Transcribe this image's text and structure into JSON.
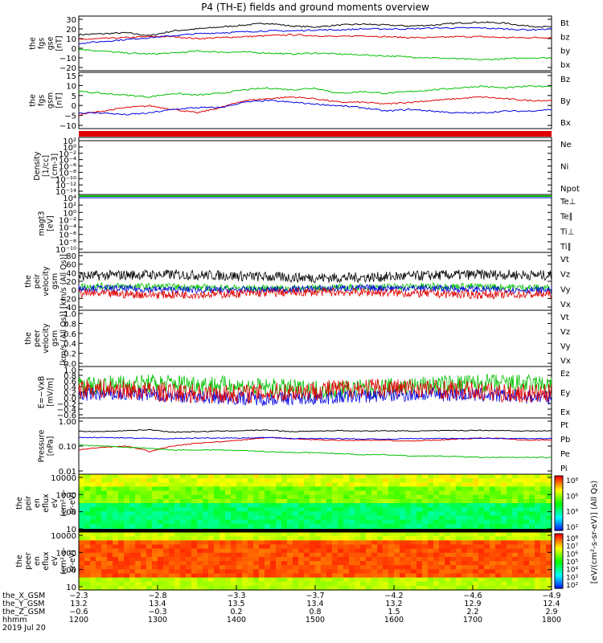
{
  "title": "P4 (TH-E) fields and ground moments overview",
  "colors": {
    "black": "#000000",
    "red": "#e00000",
    "green": "#00c000",
    "blue": "#0000e0"
  },
  "chart_data": [
    {
      "id": "fgs-gse",
      "type": "line",
      "ylabel": [
        "the",
        "fgs",
        "gse",
        "[nT]"
      ],
      "yticks": [
        "30",
        "20",
        "10",
        "0",
        "−10",
        "−20"
      ],
      "ylim": [
        -20,
        30
      ],
      "legend": [
        {
          "name": "Bt",
          "color": "black"
        },
        {
          "name": "bz",
          "color": "red"
        },
        {
          "name": "by",
          "color": "green"
        },
        {
          "name": "bx",
          "color": "blue"
        }
      ],
      "series": [
        {
          "name": "Bt",
          "color": "black",
          "values": [
            14,
            15,
            16,
            13,
            18,
            20,
            22,
            24,
            26,
            23,
            22,
            24,
            25,
            24,
            23,
            24,
            26,
            27,
            26,
            23,
            22
          ]
        },
        {
          "name": "bz",
          "color": "red",
          "values": [
            9,
            10,
            11,
            12,
            12,
            10,
            11,
            12,
            13,
            14,
            13,
            12,
            13,
            12,
            11,
            11,
            12,
            12,
            11,
            11,
            11
          ]
        },
        {
          "name": "by",
          "color": "green",
          "values": [
            -1,
            -3,
            -5,
            -6,
            -5,
            -3,
            -4,
            -4,
            -5,
            -6,
            -5,
            -6,
            -7,
            -8,
            -9,
            -10,
            -11,
            -12,
            -11,
            -10,
            -10
          ]
        },
        {
          "name": "bx",
          "color": "blue",
          "values": [
            5,
            7,
            9,
            11,
            13,
            15,
            16,
            17,
            18,
            18,
            19,
            19,
            20,
            20,
            20,
            21,
            21,
            21,
            20,
            19,
            20
          ]
        }
      ]
    },
    {
      "id": "fgs-gsm",
      "type": "line",
      "ylabel": [
        "the",
        "fgs",
        "gsm",
        "[nT]"
      ],
      "yticks": [
        "15",
        "10",
        "5",
        "0",
        "−5",
        "−10"
      ],
      "ylim": [
        -13,
        15
      ],
      "legend": [
        {
          "name": "Bz",
          "color": "red"
        },
        {
          "name": "By",
          "color": "green"
        },
        {
          "name": "Bx",
          "color": "blue"
        }
      ],
      "series": [
        {
          "name": "Bz",
          "color": "red",
          "values": [
            -7,
            -5,
            -3,
            -2,
            -4,
            -6,
            -3,
            1,
            2,
            3,
            2,
            0,
            0,
            -1,
            0,
            1,
            2,
            3,
            2,
            1,
            1
          ]
        },
        {
          "name": "By",
          "color": "green",
          "values": [
            6,
            5,
            4,
            3,
            5,
            4,
            5,
            7,
            8,
            7,
            8,
            5,
            6,
            5,
            6,
            7,
            8,
            9,
            8,
            9,
            9
          ]
        },
        {
          "name": "Bx",
          "color": "blue",
          "values": [
            -6,
            -6,
            -7,
            -6,
            -4,
            -3,
            -3,
            0,
            1,
            0,
            -1,
            -2,
            -3,
            -5,
            -4,
            -5,
            -6,
            -6,
            -5,
            -5,
            -4
          ]
        }
      ]
    },
    {
      "id": "density",
      "type": "line",
      "ylabel": [
        "Density",
        "[1/cc]",
        "[cm-3]"
      ],
      "yticks": [
        "10²",
        "10⁰",
        "10⁻²",
        "10⁻⁴",
        "10⁻⁶",
        "10⁻⁸",
        "10⁻¹⁰",
        "10⁻¹²",
        "10⁻¹⁴"
      ],
      "legend": [
        {
          "name": "Ne",
          "color": "red"
        },
        {
          "name": "Ni",
          "color": "black"
        },
        {
          "name": "Npot",
          "color": "blue"
        }
      ]
    },
    {
      "id": "temperature",
      "type": "line",
      "ylabel": [
        "magt3",
        "[eV]"
      ],
      "yticks": [
        "10⁴",
        "10²",
        "10⁰",
        "10⁻²",
        "10⁻⁴",
        "10⁻⁶",
        "10⁻⁸",
        "10⁻¹⁰"
      ],
      "legend": [
        {
          "name": "Te⊥",
          "color": "red"
        },
        {
          "name": "Te∥",
          "color": "black"
        },
        {
          "name": "Ti⊥",
          "color": "red"
        },
        {
          "name": "Ti∥",
          "color": "green"
        }
      ]
    },
    {
      "id": "peir-velocity",
      "type": "line",
      "ylabel": [
        "the",
        "peir",
        "velocity",
        "gsm",
        "[km/s (All Qs)]"
      ],
      "yticks": [
        "80",
        "60",
        "40",
        "20",
        "0",
        "−20",
        "−40"
      ],
      "ylim": [
        -40,
        80
      ],
      "legend": [
        {
          "name": "Vt",
          "color": "black"
        },
        {
          "name": "Vz",
          "color": "red"
        },
        {
          "name": "Vy",
          "color": "green"
        },
        {
          "name": "Vx",
          "color": "blue"
        }
      ]
    },
    {
      "id": "peer-velocity",
      "type": "line",
      "ylabel": [
        "the",
        "peer",
        "velocity",
        "gsm",
        "[km/s (All Qs)]"
      ],
      "yticks": [
        "1.0",
        "0.8",
        "0.6",
        "0.4",
        "0.2",
        "0.0"
      ],
      "ylim": [
        0,
        1
      ],
      "legend": [
        {
          "name": "Vt",
          "color": "black"
        },
        {
          "name": "Vz",
          "color": "red"
        },
        {
          "name": "Vy",
          "color": "green"
        },
        {
          "name": "Vx",
          "color": "blue"
        }
      ]
    },
    {
      "id": "efield",
      "type": "line",
      "ylabel": [
        "E=−VxB",
        "[mV/m]"
      ],
      "yticks": [
        "1.0",
        "0.8",
        "0.6",
        "0.4",
        "0.2",
        "0.0",
        "−0.2",
        "−0.4",
        "−0.6"
      ],
      "ylim": [
        -0.6,
        1.0
      ],
      "legend": [
        {
          "name": "Ez",
          "color": "red"
        },
        {
          "name": "Ey",
          "color": "green"
        },
        {
          "name": "Ex",
          "color": "blue"
        }
      ]
    },
    {
      "id": "pressure",
      "type": "line",
      "ylabel": [
        "Pressure",
        "[nPa]"
      ],
      "yticks": [
        "1.00",
        "0.10",
        "0.01"
      ],
      "legend": [
        {
          "name": "Pt",
          "color": "black"
        },
        {
          "name": "Pb",
          "color": "red"
        },
        {
          "name": "Pe",
          "color": "green"
        },
        {
          "name": "Pi",
          "color": "blue"
        }
      ],
      "series": [
        {
          "name": "Pt",
          "color": "black",
          "values": [
            0.4,
            0.38,
            0.42,
            0.45,
            0.36,
            0.38,
            0.4,
            0.42,
            0.44,
            0.38,
            0.4,
            0.42,
            0.4,
            0.41,
            0.4,
            0.41,
            0.42,
            0.43,
            0.42,
            0.4,
            0.41
          ]
        },
        {
          "name": "Pb",
          "color": "red",
          "values": [
            0.07,
            0.09,
            0.1,
            0.06,
            0.1,
            0.13,
            0.15,
            0.18,
            0.22,
            0.2,
            0.18,
            0.17,
            0.17,
            0.17,
            0.16,
            0.17,
            0.19,
            0.21,
            0.2,
            0.17,
            0.18
          ]
        },
        {
          "name": "Pe",
          "color": "green",
          "values": [
            0.11,
            0.1,
            0.09,
            0.08,
            0.07,
            0.07,
            0.07,
            0.065,
            0.06,
            0.055,
            0.055,
            0.05,
            0.045,
            0.045,
            0.04,
            0.04,
            0.038,
            0.035,
            0.035,
            0.035,
            0.035
          ]
        },
        {
          "name": "Pi",
          "color": "blue",
          "values": [
            0.22,
            0.22,
            0.21,
            0.2,
            0.2,
            0.21,
            0.21,
            0.21,
            0.22,
            0.2,
            0.2,
            0.2,
            0.19,
            0.19,
            0.2,
            0.2,
            0.2,
            0.21,
            0.2,
            0.2,
            0.2
          ]
        }
      ]
    },
    {
      "id": "peir-spectrogram",
      "type": "heatmap",
      "ylabel": [
        "the",
        "peir",
        "en",
        "eflux",
        "eV",
        "(cm²-s-",
        "sr-eV)"
      ],
      "yticks": [
        "10000",
        "1000",
        "100",
        "10"
      ]
    },
    {
      "id": "peer-spectrogram",
      "type": "heatmap",
      "ylabel": [
        "the",
        "peer",
        "en",
        "eflux",
        "eV",
        "(cm²-s-",
        "sr-eV)"
      ],
      "yticks": [
        "10000",
        "1000",
        "100",
        "10"
      ]
    }
  ],
  "colorbar": {
    "label": "[eV/(cm²-s-sr-eV)] (All Qs)",
    "ticks": [
      "10⁸",
      "10⁶",
      "10⁴",
      "10²"
    ],
    "ticks2": [
      "10⁸",
      "10⁷",
      "10⁶",
      "10⁵",
      "10⁴",
      "10³",
      "10²"
    ]
  },
  "x_axis": {
    "hhmm": [
      "1200",
      "1300",
      "1400",
      "1500",
      "1600",
      "1700",
      "1800"
    ],
    "rows": [
      {
        "label": "the_X_GSM",
        "values": [
          "−2.3",
          "−2.8",
          "−3.3",
          "−3.7",
          "−4.2",
          "−4.6",
          "−4.9"
        ]
      },
      {
        "label": "the_Y_GSM",
        "values": [
          "13.2",
          "13.4",
          "13.5",
          "13.4",
          "13.2",
          "12.9",
          "12.4"
        ]
      },
      {
        "label": "the_Z_GSM",
        "values": [
          "−0.6",
          "−0.3",
          "0.2",
          "0.8",
          "1.5",
          "2.2",
          "2.9"
        ]
      },
      {
        "label": "hhmm",
        "values": [
          "1200",
          "1300",
          "1400",
          "1500",
          "1600",
          "1700",
          "1800"
        ]
      }
    ],
    "date": "2019 Jul 20"
  }
}
